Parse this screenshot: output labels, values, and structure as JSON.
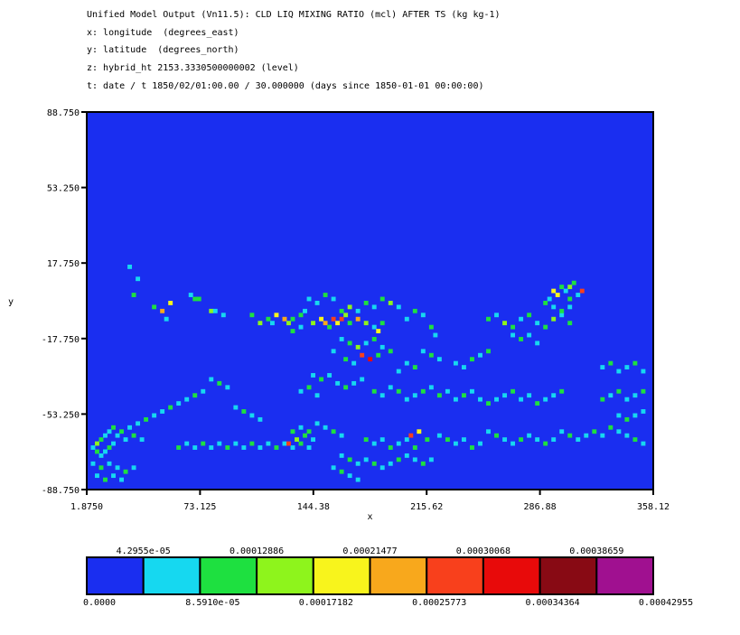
{
  "header": {
    "line1": "Unified Model Output (Vn11.5): CLD LIQ MIXING RATIO (mcl) AFTER TS (kg kg-1)",
    "line2": "x: longitude  (degrees_east)",
    "line3": "y: latitude  (degrees_north)",
    "line4": "z: hybrid_ht 2153.3330500000002 (level)",
    "line5": "t: date / t 1850/02/01:00.00 / 30.000000 (days since 1850-01-01 00:00:00)"
  },
  "chart_data": {
    "type": "heatmap",
    "xlabel": "x",
    "ylabel": "y",
    "xlim": [
      1.875,
      358.12
    ],
    "ylim": [
      -88.75,
      88.75
    ],
    "x_ticks": [
      "1.8750",
      "73.125",
      "144.38",
      "215.62",
      "286.88",
      "358.12"
    ],
    "y_ticks": [
      "88.750",
      "53.250",
      "17.750",
      "-17.750",
      "-53.250",
      "-88.750"
    ],
    "background_value": 0,
    "colorbar": {
      "colors": [
        "#1a2ef0",
        "#16d8f0",
        "#1ee040",
        "#8ef41c",
        "#f8f41c",
        "#f8a81c",
        "#f8401c",
        "#e80a0a",
        "#880a14",
        "#a01090"
      ],
      "labels_below": [
        "0.0000",
        "8.5910e-05",
        "0.00017182",
        "0.00025773",
        "0.00034364",
        "0.00042955"
      ],
      "labels_above": [
        "4.2955e-05",
        "0.00012886",
        "0.00021477",
        "0.00030068",
        "0.00038659"
      ]
    },
    "cells": [
      [
        10,
        55,
        1
      ],
      [
        12,
        52,
        1
      ],
      [
        11,
        48,
        2
      ],
      [
        16,
        45,
        2
      ],
      [
        18,
        44,
        5
      ],
      [
        20,
        46,
        4
      ],
      [
        19,
        42,
        1
      ],
      [
        26,
        47,
        2
      ],
      [
        27,
        47,
        2
      ],
      [
        25,
        48,
        1
      ],
      [
        30,
        44,
        3
      ],
      [
        31,
        44,
        1
      ],
      [
        33,
        43,
        1
      ],
      [
        40,
        43,
        2
      ],
      [
        42,
        41,
        3
      ],
      [
        44,
        42,
        2
      ],
      [
        45,
        41,
        1
      ],
      [
        46,
        43,
        4
      ],
      [
        48,
        42,
        5
      ],
      [
        49,
        41,
        3
      ],
      [
        50,
        42,
        2
      ],
      [
        52,
        43,
        2
      ],
      [
        53,
        44,
        1
      ],
      [
        55,
        41,
        3
      ],
      [
        57,
        42,
        4
      ],
      [
        58,
        41,
        5
      ],
      [
        59,
        40,
        2
      ],
      [
        60,
        42,
        6
      ],
      [
        61,
        41,
        4
      ],
      [
        62,
        42,
        6
      ],
      [
        63,
        43,
        3
      ],
      [
        64,
        41,
        2
      ],
      [
        66,
        42,
        5
      ],
      [
        68,
        41,
        3
      ],
      [
        70,
        40,
        1
      ],
      [
        71,
        39,
        4
      ],
      [
        72,
        41,
        2
      ],
      [
        62,
        44,
        2
      ],
      [
        64,
        45,
        3
      ],
      [
        66,
        44,
        1
      ],
      [
        68,
        46,
        2
      ],
      [
        70,
        45,
        1
      ],
      [
        72,
        47,
        2
      ],
      [
        74,
        46,
        3
      ],
      [
        76,
        45,
        1
      ],
      [
        60,
        47,
        1
      ],
      [
        58,
        48,
        2
      ],
      [
        56,
        46,
        1
      ],
      [
        54,
        47,
        1
      ],
      [
        52,
        40,
        1
      ],
      [
        50,
        39,
        2
      ],
      [
        78,
        42,
        1
      ],
      [
        80,
        44,
        2
      ],
      [
        82,
        43,
        1
      ],
      [
        84,
        40,
        2
      ],
      [
        85,
        38,
        1
      ],
      [
        70,
        37,
        2
      ],
      [
        68,
        36,
        1
      ],
      [
        66,
        35,
        3
      ],
      [
        64,
        36,
        2
      ],
      [
        62,
        37,
        1
      ],
      [
        72,
        35,
        1
      ],
      [
        74,
        34,
        2
      ],
      [
        67,
        33,
        6
      ],
      [
        69,
        32,
        7
      ],
      [
        71,
        33,
        2
      ],
      [
        65,
        31,
        1
      ],
      [
        63,
        32,
        2
      ],
      [
        60,
        34,
        1
      ],
      [
        98,
        42,
        2
      ],
      [
        100,
        43,
        1
      ],
      [
        102,
        41,
        3
      ],
      [
        104,
        40,
        2
      ],
      [
        106,
        42,
        1
      ],
      [
        108,
        43,
        2
      ],
      [
        110,
        41,
        1
      ],
      [
        112,
        40,
        2
      ],
      [
        114,
        42,
        3
      ],
      [
        116,
        43,
        1
      ],
      [
        118,
        41,
        2
      ],
      [
        104,
        38,
        1
      ],
      [
        106,
        37,
        2
      ],
      [
        108,
        38,
        1
      ],
      [
        110,
        36,
        1
      ],
      [
        114,
        49,
        4
      ],
      [
        115,
        48,
        4
      ],
      [
        116,
        50,
        2
      ],
      [
        117,
        49,
        1
      ],
      [
        113,
        47,
        1
      ],
      [
        118,
        50,
        3
      ],
      [
        119,
        51,
        2
      ],
      [
        120,
        48,
        1
      ],
      [
        121,
        49,
        6
      ],
      [
        118,
        47,
        2
      ],
      [
        112,
        46,
        2
      ],
      [
        114,
        45,
        1
      ],
      [
        116,
        44,
        2
      ],
      [
        118,
        45,
        1
      ],
      [
        82,
        34,
        1
      ],
      [
        84,
        33,
        2
      ],
      [
        86,
        32,
        1
      ],
      [
        80,
        30,
        2
      ],
      [
        78,
        31,
        1
      ],
      [
        76,
        29,
        1
      ],
      [
        98,
        34,
        2
      ],
      [
        96,
        33,
        1
      ],
      [
        94,
        32,
        2
      ],
      [
        92,
        30,
        1
      ],
      [
        90,
        31,
        1
      ],
      [
        55,
        28,
        1
      ],
      [
        57,
        27,
        2
      ],
      [
        59,
        28,
        1
      ],
      [
        61,
        26,
        1
      ],
      [
        63,
        25,
        2
      ],
      [
        65,
        26,
        1
      ],
      [
        67,
        27,
        1
      ],
      [
        52,
        24,
        1
      ],
      [
        54,
        25,
        2
      ],
      [
        56,
        23,
        1
      ],
      [
        70,
        24,
        2
      ],
      [
        72,
        23,
        1
      ],
      [
        74,
        25,
        1
      ],
      [
        76,
        24,
        2
      ],
      [
        78,
        22,
        1
      ],
      [
        80,
        23,
        1
      ],
      [
        82,
        24,
        2
      ],
      [
        84,
        25,
        1
      ],
      [
        86,
        23,
        2
      ],
      [
        88,
        24,
        1
      ],
      [
        90,
        22,
        1
      ],
      [
        92,
        23,
        2
      ],
      [
        94,
        24,
        1
      ],
      [
        96,
        22,
        1
      ],
      [
        98,
        21,
        2
      ],
      [
        100,
        22,
        1
      ],
      [
        102,
        23,
        1
      ],
      [
        104,
        24,
        2
      ],
      [
        106,
        22,
        1
      ],
      [
        108,
        23,
        1
      ],
      [
        110,
        21,
        2
      ],
      [
        112,
        22,
        1
      ],
      [
        114,
        23,
        1
      ],
      [
        116,
        24,
        2
      ],
      [
        30,
        27,
        1
      ],
      [
        32,
        26,
        2
      ],
      [
        34,
        25,
        1
      ],
      [
        28,
        24,
        1
      ],
      [
        26,
        23,
        2
      ],
      [
        24,
        22,
        1
      ],
      [
        22,
        21,
        1
      ],
      [
        20,
        20,
        2
      ],
      [
        18,
        19,
        1
      ],
      [
        16,
        18,
        1
      ],
      [
        14,
        17,
        2
      ],
      [
        12,
        16,
        1
      ],
      [
        10,
        15,
        1
      ],
      [
        36,
        20,
        1
      ],
      [
        38,
        19,
        2
      ],
      [
        40,
        18,
        1
      ],
      [
        42,
        17,
        1
      ],
      [
        8,
        14,
        2
      ],
      [
        7,
        13,
        1
      ],
      [
        9,
        12,
        1
      ],
      [
        11,
        13,
        2
      ],
      [
        13,
        12,
        1
      ],
      [
        6,
        11,
        1
      ],
      [
        5,
        10,
        2
      ],
      [
        4,
        9,
        1
      ],
      [
        3,
        8,
        1
      ],
      [
        2,
        9,
        2
      ],
      [
        1,
        10,
        1
      ],
      [
        2,
        11,
        3
      ],
      [
        3,
        12,
        2
      ],
      [
        4,
        13,
        1
      ],
      [
        5,
        14,
        1
      ],
      [
        6,
        15,
        2
      ],
      [
        22,
        10,
        2
      ],
      [
        24,
        11,
        1
      ],
      [
        26,
        10,
        1
      ],
      [
        28,
        11,
        2
      ],
      [
        30,
        10,
        1
      ],
      [
        32,
        11,
        1
      ],
      [
        34,
        10,
        2
      ],
      [
        36,
        11,
        1
      ],
      [
        38,
        10,
        1
      ],
      [
        40,
        11,
        2
      ],
      [
        42,
        10,
        1
      ],
      [
        44,
        11,
        1
      ],
      [
        46,
        10,
        2
      ],
      [
        48,
        11,
        1
      ],
      [
        50,
        10,
        1
      ],
      [
        52,
        11,
        2
      ],
      [
        54,
        10,
        1
      ],
      [
        50,
        14,
        2
      ],
      [
        52,
        15,
        1
      ],
      [
        54,
        14,
        2
      ],
      [
        56,
        16,
        1
      ],
      [
        58,
        15,
        1
      ],
      [
        60,
        14,
        2
      ],
      [
        62,
        13,
        1
      ],
      [
        49,
        11,
        6
      ],
      [
        51,
        12,
        3
      ],
      [
        53,
        13,
        2
      ],
      [
        55,
        12,
        1
      ],
      [
        68,
        12,
        2
      ],
      [
        70,
        11,
        1
      ],
      [
        72,
        12,
        1
      ],
      [
        74,
        10,
        2
      ],
      [
        76,
        11,
        1
      ],
      [
        78,
        12,
        1
      ],
      [
        80,
        10,
        2
      ],
      [
        62,
        8,
        1
      ],
      [
        64,
        7,
        2
      ],
      [
        66,
        6,
        1
      ],
      [
        68,
        7,
        1
      ],
      [
        70,
        6,
        2
      ],
      [
        72,
        5,
        1
      ],
      [
        74,
        6,
        1
      ],
      [
        76,
        7,
        2
      ],
      [
        78,
        8,
        1
      ],
      [
        80,
        7,
        1
      ],
      [
        82,
        6,
        2
      ],
      [
        84,
        7,
        1
      ],
      [
        60,
        5,
        1
      ],
      [
        62,
        4,
        2
      ],
      [
        64,
        3,
        1
      ],
      [
        66,
        2,
        1
      ],
      [
        86,
        13,
        1
      ],
      [
        88,
        12,
        2
      ],
      [
        90,
        11,
        1
      ],
      [
        92,
        12,
        1
      ],
      [
        94,
        10,
        2
      ],
      [
        96,
        11,
        1
      ],
      [
        79,
        13,
        6
      ],
      [
        81,
        14,
        4
      ],
      [
        83,
        12,
        2
      ],
      [
        98,
        14,
        1
      ],
      [
        100,
        13,
        2
      ],
      [
        102,
        12,
        1
      ],
      [
        104,
        11,
        1
      ],
      [
        106,
        12,
        2
      ],
      [
        108,
        13,
        1
      ],
      [
        110,
        12,
        1
      ],
      [
        112,
        11,
        2
      ],
      [
        114,
        12,
        1
      ],
      [
        116,
        14,
        1
      ],
      [
        118,
        13,
        2
      ],
      [
        120,
        12,
        1
      ],
      [
        122,
        13,
        1
      ],
      [
        124,
        14,
        2
      ],
      [
        126,
        13,
        1
      ],
      [
        128,
        15,
        2
      ],
      [
        130,
        14,
        1
      ],
      [
        132,
        13,
        1
      ],
      [
        134,
        12,
        2
      ],
      [
        136,
        11,
        1
      ],
      [
        126,
        22,
        2
      ],
      [
        128,
        23,
        1
      ],
      [
        130,
        24,
        2
      ],
      [
        132,
        22,
        1
      ],
      [
        134,
        23,
        1
      ],
      [
        136,
        24,
        2
      ],
      [
        126,
        30,
        1
      ],
      [
        128,
        31,
        2
      ],
      [
        130,
        29,
        1
      ],
      [
        132,
        30,
        1
      ],
      [
        134,
        31,
        2
      ],
      [
        136,
        29,
        1
      ],
      [
        130,
        18,
        1
      ],
      [
        132,
        17,
        2
      ],
      [
        134,
        18,
        1
      ],
      [
        136,
        19,
        1
      ],
      [
        1,
        6,
        1
      ],
      [
        3,
        5,
        2
      ],
      [
        5,
        6,
        1
      ],
      [
        7,
        5,
        1
      ],
      [
        9,
        4,
        2
      ],
      [
        11,
        5,
        1
      ],
      [
        2,
        3,
        1
      ],
      [
        4,
        2,
        2
      ],
      [
        6,
        3,
        1
      ],
      [
        8,
        2,
        1
      ]
    ]
  }
}
